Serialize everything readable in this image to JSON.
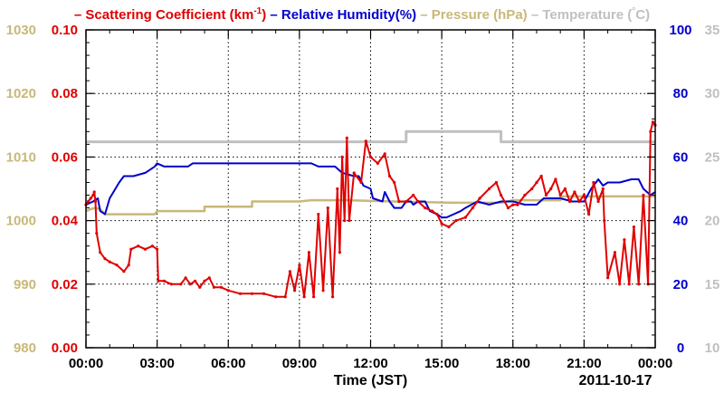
{
  "chart_data": {
    "type": "line",
    "date_label": "2011-10-17",
    "legend": {
      "placement": "top",
      "items": [
        {
          "dash": "–",
          "text": "Scattering Coefficient (km",
          "sup": "-1",
          "after": ")",
          "color": "#e00000"
        },
        {
          "dash": "–",
          "text": "Relative Humidity(%)",
          "color": "#0000cc"
        },
        {
          "dash": "–",
          "text": "Pressure (hPa)",
          "color": "#c8b878"
        },
        {
          "dash": "–",
          "text": "Temperature (",
          "degree": "°",
          "after": "C)",
          "color": "#c0c0c0"
        }
      ]
    },
    "x_axis": {
      "label": "Time (JST)",
      "range": [
        "00:00",
        "24:00"
      ],
      "ticks": [
        "00:00",
        "03:00",
        "06:00",
        "09:00",
        "12:00",
        "15:00",
        "18:00",
        "21:00",
        "00:00"
      ]
    },
    "axes": {
      "pressure": {
        "label": "",
        "range": [
          980,
          1030
        ],
        "ticks": [
          "980",
          "990",
          "1000",
          "1010",
          "1020",
          "1030"
        ],
        "color": "#c8b878"
      },
      "scattering": {
        "label": "",
        "range": [
          0.0,
          0.1
        ],
        "ticks": [
          "0.00",
          "0.02",
          "0.04",
          "0.06",
          "0.08",
          "0.10"
        ],
        "color": "#e00000"
      },
      "humidity": {
        "label": "",
        "range": [
          0,
          100
        ],
        "ticks": [
          "0",
          "20",
          "40",
          "60",
          "80",
          "100"
        ],
        "color": "#0000cc"
      },
      "temperature": {
        "label": "",
        "range": [
          10,
          35
        ],
        "ticks": [
          "10",
          "15",
          "20",
          "25",
          "30",
          "35"
        ],
        "color": "#c0c0c0"
      }
    },
    "grid": true,
    "series": [
      {
        "key": "temperature",
        "axis": "temperature",
        "color": "#c0c0c0",
        "points": [
          [
            0.0,
            26.2
          ],
          [
            13.5,
            26.2
          ],
          [
            13.5,
            27.0
          ],
          [
            17.5,
            27.0
          ],
          [
            17.5,
            26.2
          ],
          [
            24.0,
            26.2
          ]
        ]
      },
      {
        "key": "pressure",
        "axis": "pressure",
        "color": "#c8b878",
        "points": [
          [
            0.0,
            1001.5
          ],
          [
            0.2,
            1001.8
          ],
          [
            0.4,
            1002.0
          ],
          [
            0.6,
            1001.8
          ],
          [
            0.8,
            1001.0
          ],
          [
            2.9,
            1001.0
          ],
          [
            3.0,
            1001.5
          ],
          [
            5.0,
            1001.5
          ],
          [
            5.0,
            1002.2
          ],
          [
            7.0,
            1002.2
          ],
          [
            7.0,
            1003.0
          ],
          [
            9.0,
            1003.0
          ],
          [
            9.5,
            1003.2
          ],
          [
            11.0,
            1003.2
          ],
          [
            13.0,
            1003.0
          ],
          [
            15.5,
            1002.8
          ],
          [
            17.5,
            1002.8
          ],
          [
            18.0,
            1003.2
          ],
          [
            20.0,
            1003.2
          ],
          [
            20.0,
            1003.8
          ],
          [
            24.0,
            1003.8
          ]
        ]
      },
      {
        "key": "humidity",
        "axis": "humidity",
        "color": "#0000cc",
        "points": [
          [
            0.0,
            45
          ],
          [
            0.3,
            46
          ],
          [
            0.5,
            47
          ],
          [
            0.6,
            43
          ],
          [
            0.8,
            42
          ],
          [
            1.0,
            47
          ],
          [
            1.4,
            52
          ],
          [
            1.6,
            54
          ],
          [
            1.7,
            54
          ],
          [
            2.0,
            54
          ],
          [
            2.5,
            55
          ],
          [
            2.9,
            57
          ],
          [
            3.0,
            58
          ],
          [
            3.3,
            57
          ],
          [
            4.0,
            57
          ],
          [
            4.3,
            57
          ],
          [
            4.5,
            58
          ],
          [
            7.0,
            58
          ],
          [
            8.0,
            58
          ],
          [
            9.5,
            58
          ],
          [
            9.8,
            57
          ],
          [
            10.5,
            57
          ],
          [
            10.8,
            55
          ],
          [
            11.3,
            54
          ],
          [
            11.5,
            54
          ],
          [
            11.7,
            51
          ],
          [
            12.0,
            50
          ],
          [
            12.1,
            47
          ],
          [
            12.5,
            46
          ],
          [
            12.6,
            49
          ],
          [
            12.8,
            46
          ],
          [
            13.0,
            44
          ],
          [
            13.3,
            44
          ],
          [
            13.5,
            46
          ],
          [
            13.7,
            46
          ],
          [
            13.8,
            45
          ],
          [
            14.0,
            46
          ],
          [
            14.3,
            46
          ],
          [
            14.5,
            43
          ],
          [
            14.8,
            42
          ],
          [
            15.0,
            41
          ],
          [
            15.2,
            41
          ],
          [
            15.5,
            42
          ],
          [
            15.8,
            43
          ],
          [
            16.0,
            44
          ],
          [
            16.5,
            46
          ],
          [
            17.0,
            45
          ],
          [
            17.5,
            46
          ],
          [
            18.0,
            46
          ],
          [
            18.5,
            45
          ],
          [
            19.0,
            45
          ],
          [
            19.3,
            47
          ],
          [
            19.6,
            47
          ],
          [
            20.0,
            47
          ],
          [
            20.5,
            46
          ],
          [
            21.0,
            46
          ],
          [
            21.3,
            50
          ],
          [
            21.6,
            53
          ],
          [
            21.8,
            51
          ],
          [
            22.0,
            52
          ],
          [
            22.5,
            52
          ],
          [
            23.0,
            53
          ],
          [
            23.3,
            53
          ],
          [
            23.5,
            50
          ],
          [
            23.8,
            48
          ],
          [
            24.0,
            49
          ]
        ]
      },
      {
        "key": "scattering",
        "axis": "scattering",
        "color": "#e00000",
        "points": [
          [
            0.0,
            0.045
          ],
          [
            0.1,
            0.046
          ],
          [
            0.2,
            0.047
          ],
          [
            0.3,
            0.048
          ],
          [
            0.35,
            0.049
          ],
          [
            0.4,
            0.046
          ],
          [
            0.45,
            0.036
          ],
          [
            0.6,
            0.03
          ],
          [
            0.8,
            0.028
          ],
          [
            1.0,
            0.027
          ],
          [
            1.3,
            0.026
          ],
          [
            1.6,
            0.024
          ],
          [
            1.8,
            0.026
          ],
          [
            1.9,
            0.031
          ],
          [
            2.2,
            0.032
          ],
          [
            2.5,
            0.031
          ],
          [
            2.8,
            0.032
          ],
          [
            3.0,
            0.031
          ],
          [
            3.05,
            0.021
          ],
          [
            3.3,
            0.021
          ],
          [
            3.6,
            0.02
          ],
          [
            4.0,
            0.02
          ],
          [
            4.2,
            0.022
          ],
          [
            4.4,
            0.02
          ],
          [
            4.6,
            0.021
          ],
          [
            4.8,
            0.019
          ],
          [
            5.0,
            0.021
          ],
          [
            5.2,
            0.022
          ],
          [
            5.4,
            0.019
          ],
          [
            5.7,
            0.019
          ],
          [
            6.0,
            0.018
          ],
          [
            6.5,
            0.017
          ],
          [
            7.0,
            0.017
          ],
          [
            7.5,
            0.017
          ],
          [
            8.0,
            0.016
          ],
          [
            8.4,
            0.016
          ],
          [
            8.6,
            0.024
          ],
          [
            8.8,
            0.018
          ],
          [
            9.0,
            0.026
          ],
          [
            9.2,
            0.016
          ],
          [
            9.4,
            0.03
          ],
          [
            9.6,
            0.016
          ],
          [
            9.8,
            0.042
          ],
          [
            10.0,
            0.018
          ],
          [
            10.2,
            0.044
          ],
          [
            10.4,
            0.016
          ],
          [
            10.6,
            0.05
          ],
          [
            10.7,
            0.03
          ],
          [
            10.8,
            0.06
          ],
          [
            10.9,
            0.04
          ],
          [
            11.0,
            0.066
          ],
          [
            11.1,
            0.04
          ],
          [
            11.3,
            0.055
          ],
          [
            11.6,
            0.052
          ],
          [
            11.8,
            0.065
          ],
          [
            12.0,
            0.06
          ],
          [
            12.3,
            0.058
          ],
          [
            12.6,
            0.061
          ],
          [
            12.8,
            0.054
          ],
          [
            13.0,
            0.052
          ],
          [
            13.2,
            0.046
          ],
          [
            13.5,
            0.046
          ],
          [
            13.8,
            0.048
          ],
          [
            14.0,
            0.046
          ],
          [
            14.3,
            0.044
          ],
          [
            14.6,
            0.043
          ],
          [
            14.8,
            0.042
          ],
          [
            15.0,
            0.039
          ],
          [
            15.3,
            0.038
          ],
          [
            15.6,
            0.04
          ],
          [
            16.0,
            0.041
          ],
          [
            16.3,
            0.044
          ],
          [
            16.6,
            0.047
          ],
          [
            17.0,
            0.05
          ],
          [
            17.3,
            0.052
          ],
          [
            17.5,
            0.048
          ],
          [
            17.8,
            0.044
          ],
          [
            18.0,
            0.045
          ],
          [
            18.2,
            0.045
          ],
          [
            18.5,
            0.048
          ],
          [
            18.8,
            0.05
          ],
          [
            19.0,
            0.052
          ],
          [
            19.2,
            0.054
          ],
          [
            19.4,
            0.048
          ],
          [
            19.6,
            0.05
          ],
          [
            19.8,
            0.053
          ],
          [
            20.0,
            0.048
          ],
          [
            20.2,
            0.05
          ],
          [
            20.4,
            0.046
          ],
          [
            20.6,
            0.049
          ],
          [
            20.8,
            0.046
          ],
          [
            21.0,
            0.048
          ],
          [
            21.2,
            0.042
          ],
          [
            21.4,
            0.052
          ],
          [
            21.6,
            0.046
          ],
          [
            21.8,
            0.05
          ],
          [
            21.85,
            0.04
          ],
          [
            22.0,
            0.022
          ],
          [
            22.3,
            0.03
          ],
          [
            22.5,
            0.02
          ],
          [
            22.7,
            0.034
          ],
          [
            22.9,
            0.02
          ],
          [
            23.1,
            0.038
          ],
          [
            23.3,
            0.02
          ],
          [
            23.5,
            0.048
          ],
          [
            23.7,
            0.02
          ],
          [
            23.8,
            0.068
          ],
          [
            23.9,
            0.071
          ],
          [
            24.0,
            0.07
          ]
        ]
      }
    ]
  }
}
